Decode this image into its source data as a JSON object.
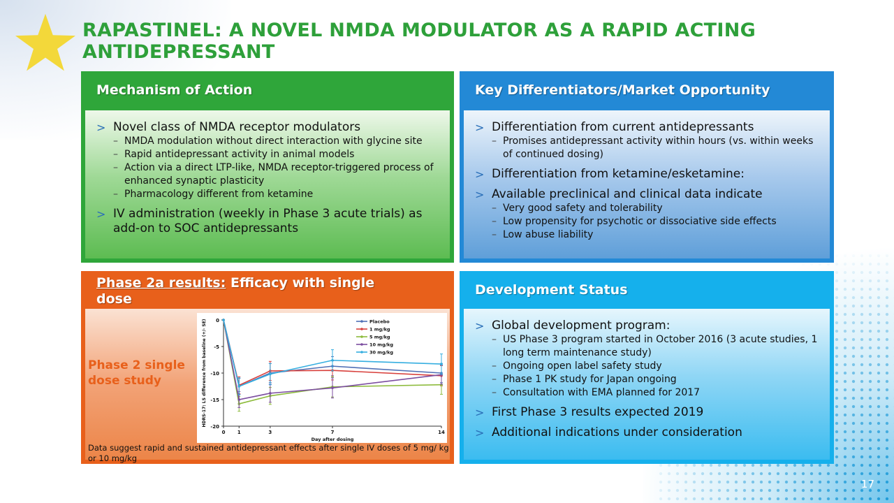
{
  "title": "RAPASTINEL: A NOVEL NMDA MODULATOR AS A RAPID ACTING ANTIDEPRESSANT",
  "colors": {
    "green": "#2fa63a",
    "blue": "#2389d6",
    "orange": "#e8601b",
    "cyan": "#15b0ec",
    "title": "#2ea03a"
  },
  "mechanism": {
    "heading": "Mechanism of Action",
    "items": [
      {
        "text": "Novel class of NMDA receptor modulators",
        "subs": [
          "NMDA modulation without direct interaction with glycine site",
          "Rapid antidepressant activity in animal models",
          "Action via a direct LTP-like, NMDA receptor-triggered process of enhanced synaptic plasticity",
          "Pharmacology different from ketamine"
        ]
      },
      {
        "text": "IV administration (weekly in Phase 3 acute trials) as add-on to SOC antidepressants",
        "subs": []
      }
    ]
  },
  "differentiators": {
    "heading": "Key Differentiators/Market Opportunity",
    "items": [
      {
        "text": "Differentiation from current antidepressants",
        "subs": [
          "Promises antidepressant activity within hours (vs. within weeks of continued dosing)"
        ]
      },
      {
        "text": "Differentiation from ketamine/esketamine:",
        "subs": []
      },
      {
        "text": "Available preclinical and clinical data indicate",
        "subs": [
          "Very good safety and tolerability",
          "Low propensity for psychotic or dissociative side effects",
          "Low abuse liability"
        ]
      }
    ]
  },
  "phase2": {
    "heading_underlined": "Phase 2a results:",
    "heading_rest": " Efficacy with single dose",
    "label": "Phase 2 single dose study",
    "note": "Data suggest rapid  and sustained antidepressant effects after single IV  doses of 5 mg/ kg or 10 mg/kg"
  },
  "development": {
    "heading": "Development Status",
    "items": [
      {
        "text": "Global development program:",
        "subs": [
          "US Phase 3 program started in October 2016 (3 acute  studies, 1 long term maintenance study)",
          "Ongoing open label safety study",
          "Phase 1 PK study for Japan ongoing",
          "Consultation with EMA planned for 2017"
        ]
      },
      {
        "text": "First Phase 3 results expected 2019",
        "subs": []
      },
      {
        "text": "Additional indications under consideration",
        "subs": []
      }
    ]
  },
  "page_number": "17",
  "chart_data": {
    "type": "line",
    "xlabel": "Day after dosing",
    "ylabel": "HDRS-17: LS difference from baseline (+/- SE)",
    "xlim": [
      0,
      14
    ],
    "ylim": [
      -20,
      0
    ],
    "xticks": [
      0,
      1,
      3,
      7,
      14
    ],
    "yticks": [
      0,
      -5,
      -10,
      -15,
      -20
    ],
    "legend_position": "top-right",
    "series": [
      {
        "name": "Placebo",
        "color": "#4f6fb5",
        "x": [
          0,
          1,
          3,
          7,
          14
        ],
        "y": [
          0,
          -12.5,
          -10.0,
          -8.7,
          -10.0
        ],
        "err": [
          0,
          1.5,
          1.8,
          1.8,
          1.8
        ]
      },
      {
        "name": "1 mg/kg",
        "color": "#d8403c",
        "x": [
          0,
          1,
          3,
          7,
          14
        ],
        "y": [
          0,
          -12.3,
          -9.6,
          -9.5,
          -10.5
        ],
        "err": [
          0,
          1.6,
          1.8,
          1.8,
          1.9
        ]
      },
      {
        "name": "5 mg/kg",
        "color": "#8dbb3c",
        "x": [
          0,
          1,
          3,
          7,
          14
        ],
        "y": [
          0,
          -15.8,
          -14.3,
          -12.6,
          -12.2
        ],
        "err": [
          0,
          1.4,
          1.6,
          1.9,
          1.8
        ]
      },
      {
        "name": "10 mg/kg",
        "color": "#7c4ea0",
        "x": [
          0,
          1,
          3,
          7,
          14
        ],
        "y": [
          0,
          -15.0,
          -13.8,
          -12.8,
          -10.3
        ],
        "err": [
          0,
          1.5,
          1.7,
          1.9,
          1.8
        ]
      },
      {
        "name": "30 mg/kg",
        "color": "#35aee0",
        "x": [
          0,
          1,
          3,
          7,
          14
        ],
        "y": [
          0,
          -12.5,
          -10.2,
          -7.6,
          -8.3
        ],
        "err": [
          0,
          1.6,
          2.0,
          2.0,
          1.9
        ]
      }
    ]
  }
}
